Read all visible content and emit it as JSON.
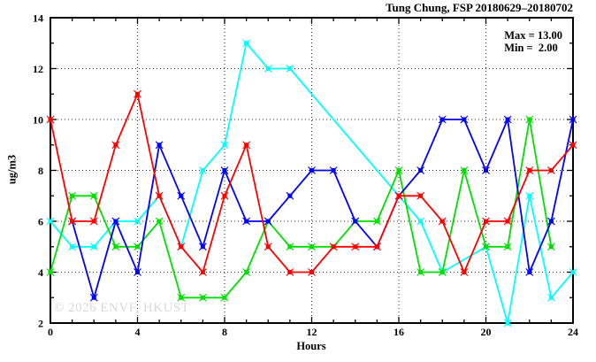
{
  "title": "Tung Chung, FSP 20180629–20180702",
  "annotation": {
    "max_label": "Max = 13.00",
    "min_label": "Min =  2.00"
  },
  "watermark": "© 2026 ENVF, HKUST",
  "chart_data": {
    "type": "line",
    "title": "Tung Chung, FSP 20180629–20180702",
    "xlabel": "Hours",
    "ylabel": "ug/m3",
    "xlim": [
      0,
      24
    ],
    "ylim": [
      2,
      14
    ],
    "x_major_ticks": [
      0,
      4,
      8,
      12,
      16,
      20,
      24
    ],
    "x_minor_tick_step": 1,
    "y_major_ticks": [
      2,
      4,
      6,
      8,
      10,
      12,
      14
    ],
    "y_minor_tick_step": 1,
    "grid": true,
    "legend": "none",
    "stats": {
      "max": 13.0,
      "min": 2.0
    },
    "marker": "square-x",
    "series": [
      {
        "name": "cyan-series",
        "color": "#00ffff",
        "points": [
          [
            0,
            6
          ],
          [
            1,
            5
          ],
          [
            2,
            5
          ],
          [
            3,
            6
          ],
          [
            4,
            6
          ],
          [
            5,
            7
          ],
          [
            6,
            5
          ],
          [
            7,
            8
          ],
          [
            8,
            9
          ],
          [
            9,
            13
          ],
          [
            10,
            12
          ],
          [
            11,
            12
          ],
          [
            17,
            6
          ],
          [
            18,
            4
          ],
          [
            20,
            5
          ],
          [
            21,
            2
          ],
          [
            22,
            7
          ],
          [
            23,
            3
          ],
          [
            24,
            4
          ]
        ]
      },
      {
        "name": "green-series",
        "color": "#00e000",
        "points": [
          [
            0,
            4
          ],
          [
            1,
            7
          ],
          [
            2,
            7
          ],
          [
            3,
            5
          ],
          [
            4,
            5
          ],
          [
            5,
            6
          ],
          [
            6,
            3
          ],
          [
            7,
            3
          ],
          [
            8,
            3
          ],
          [
            9,
            4
          ],
          [
            10,
            6
          ],
          [
            11,
            5
          ],
          [
            12,
            5
          ],
          [
            13,
            5
          ],
          [
            14,
            6
          ],
          [
            15,
            6
          ],
          [
            16,
            8
          ],
          [
            17,
            4
          ],
          [
            18,
            4
          ],
          [
            19,
            8
          ],
          [
            20,
            5
          ],
          [
            21,
            5
          ],
          [
            22,
            10
          ],
          [
            23,
            5
          ]
        ]
      },
      {
        "name": "blue-series",
        "color": "#0000ff",
        "points": [
          [
            1,
            6
          ],
          [
            2,
            3
          ],
          [
            3,
            6
          ],
          [
            4,
            4
          ],
          [
            5,
            9
          ],
          [
            6,
            7
          ],
          [
            7,
            5
          ],
          [
            8,
            8
          ],
          [
            9,
            6
          ],
          [
            10,
            6
          ],
          [
            11,
            7
          ],
          [
            12,
            8
          ],
          [
            13,
            8
          ],
          [
            14,
            6
          ],
          [
            15,
            5
          ],
          [
            16,
            7
          ],
          [
            17,
            8
          ],
          [
            18,
            10
          ],
          [
            19,
            10
          ],
          [
            20,
            8
          ],
          [
            21,
            10
          ],
          [
            22,
            4
          ],
          [
            23,
            6
          ],
          [
            24,
            10
          ]
        ]
      },
      {
        "name": "red-series",
        "color": "#ff0000",
        "points": [
          [
            0,
            10
          ],
          [
            1,
            6
          ],
          [
            2,
            6
          ],
          [
            3,
            9
          ],
          [
            4,
            11
          ],
          [
            5,
            7
          ],
          [
            6,
            5
          ],
          [
            7,
            4
          ],
          [
            8,
            7
          ],
          [
            9,
            9
          ],
          [
            10,
            5
          ],
          [
            11,
            4
          ],
          [
            12,
            4
          ],
          [
            13,
            5
          ],
          [
            14,
            5
          ],
          [
            15,
            5
          ],
          [
            16,
            7
          ],
          [
            17,
            7
          ],
          [
            18,
            6
          ],
          [
            19,
            4
          ],
          [
            20,
            6
          ],
          [
            21,
            6
          ],
          [
            22,
            8
          ],
          [
            23,
            8
          ],
          [
            24,
            9
          ]
        ]
      }
    ]
  }
}
